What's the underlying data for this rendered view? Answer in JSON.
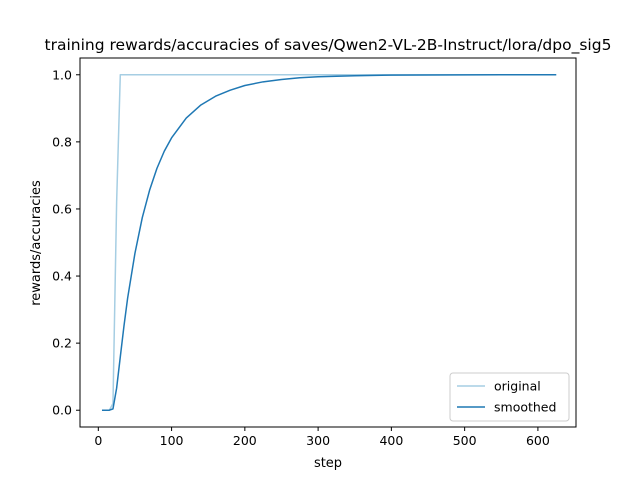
{
  "chart_data": {
    "type": "line",
    "title": "training rewards/accuracies of saves/Qwen2-VL-2B-Instruct/lora/dpo_sig5",
    "xlabel": "step",
    "ylabel": "rewards/accuracies",
    "xlim": [
      -25,
      652
    ],
    "ylim": [
      -0.05,
      1.05
    ],
    "xticks": [
      0,
      100,
      200,
      300,
      400,
      500,
      600
    ],
    "yticks": [
      0.0,
      0.2,
      0.4,
      0.6,
      0.8,
      1.0
    ],
    "ytick_labels": [
      "0.0",
      "0.2",
      "0.4",
      "0.6",
      "0.8",
      "1.0"
    ],
    "grid": false,
    "legend_position": "lower-right",
    "series": [
      {
        "name": "original",
        "color": "#a6cee3",
        "x": [
          5,
          10,
          15,
          20,
          25,
          30,
          35,
          40,
          50,
          100,
          200,
          300,
          400,
          500,
          600,
          625
        ],
        "y": [
          0.0,
          0.0,
          0.0,
          0.02,
          0.62,
          1.0,
          1.0,
          1.0,
          1.0,
          1.0,
          1.0,
          1.0,
          1.0,
          1.0,
          1.0,
          1.0
        ]
      },
      {
        "name": "smoothed",
        "color": "#1f78b4",
        "x": [
          5,
          10,
          15,
          20,
          25,
          30,
          35,
          40,
          50,
          60,
          70,
          80,
          90,
          100,
          120,
          140,
          160,
          180,
          200,
          225,
          250,
          275,
          300,
          350,
          400,
          450,
          500,
          550,
          600,
          625
        ],
        "y": [
          0.0,
          0.0,
          0.0,
          0.004,
          0.066,
          0.159,
          0.251,
          0.334,
          0.468,
          0.574,
          0.656,
          0.721,
          0.772,
          0.812,
          0.871,
          0.91,
          0.936,
          0.954,
          0.968,
          0.979,
          0.986,
          0.991,
          0.994,
          0.997,
          0.999,
          0.9995,
          0.9998,
          0.9999,
          1.0,
          1.0
        ]
      }
    ]
  }
}
